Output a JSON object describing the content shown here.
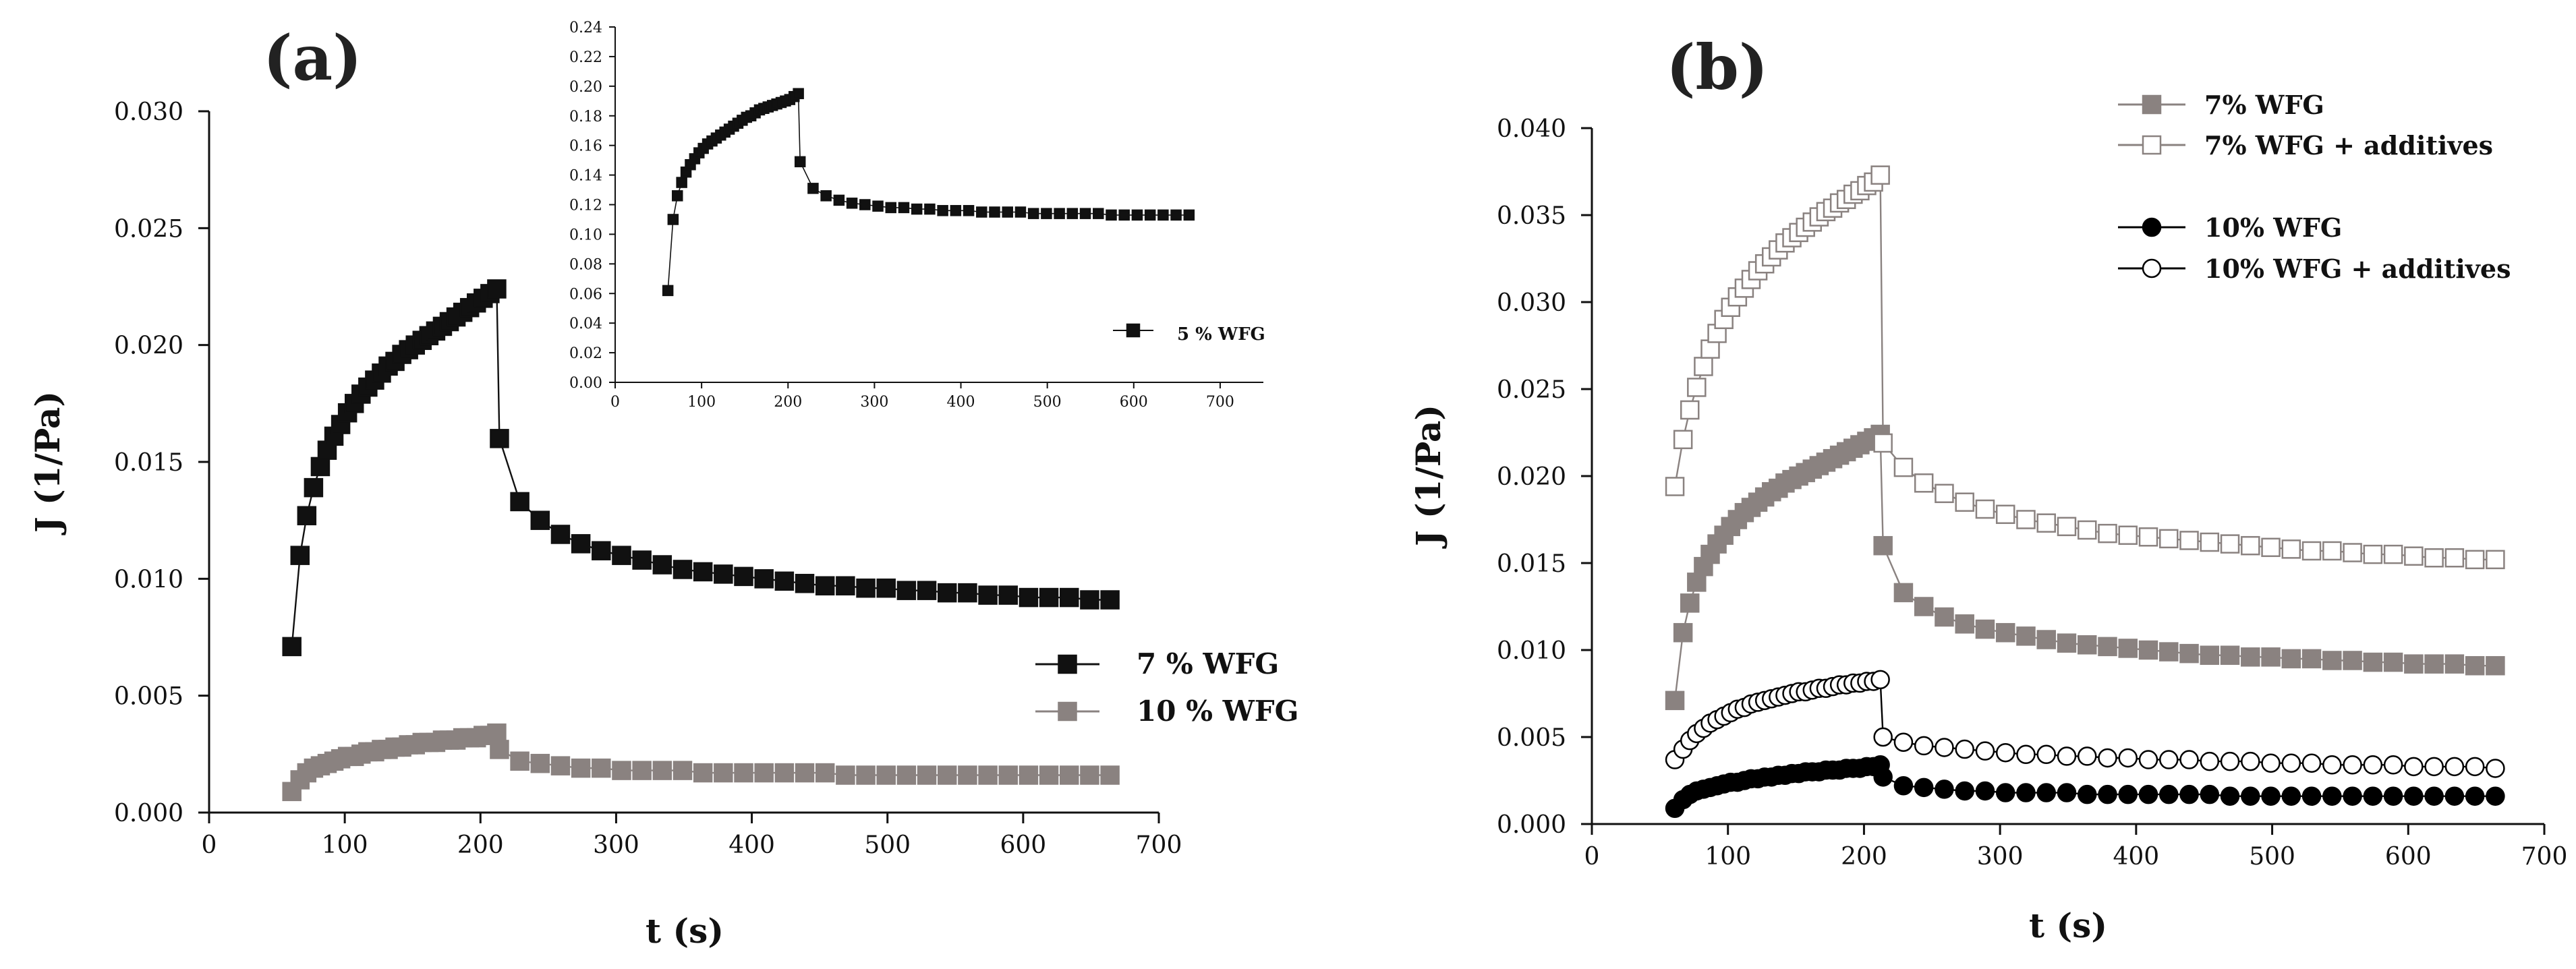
{
  "chart_data": [
    {
      "id": "a",
      "type": "line",
      "panel_label": "(a)",
      "xlabel": "t (s)",
      "ylabel": "J (1/Pa)",
      "xlim": [
        0,
        700
      ],
      "ylim": [
        0,
        0.03
      ],
      "xticks": [
        "0",
        "100",
        "200",
        "300",
        "400",
        "500",
        "600",
        "700"
      ],
      "yticks": [
        "0.000",
        "0.005",
        "0.010",
        "0.015",
        "0.020",
        "0.025",
        "0.030"
      ],
      "legend_position": "right-middle",
      "series": [
        {
          "name": "7 % WFG",
          "marker": "square",
          "fill": "#111111",
          "stroke": "#111111",
          "x": [
            61,
            67,
            72,
            77,
            82,
            87,
            92,
            97,
            102,
            107,
            112,
            117,
            122,
            127,
            132,
            137,
            142,
            147,
            152,
            157,
            162,
            167,
            172,
            177,
            182,
            187,
            192,
            197,
            202,
            207,
            212,
            214,
            229,
            244,
            259,
            274,
            289,
            304,
            319,
            334,
            349,
            364,
            379,
            394,
            409,
            424,
            439,
            454,
            469,
            484,
            499,
            514,
            529,
            544,
            559,
            574,
            589,
            604,
            619,
            634,
            649,
            664
          ],
          "y": [
            0.0071,
            0.011,
            0.0127,
            0.0139,
            0.0148,
            0.0155,
            0.0161,
            0.0166,
            0.0171,
            0.0175,
            0.0179,
            0.0182,
            0.0185,
            0.0188,
            0.0191,
            0.0193,
            0.0196,
            0.0198,
            0.02,
            0.0202,
            0.0204,
            0.0206,
            0.0208,
            0.021,
            0.0212,
            0.0214,
            0.0216,
            0.0218,
            0.022,
            0.0222,
            0.0224,
            0.016,
            0.0133,
            0.0125,
            0.0119,
            0.0115,
            0.0112,
            0.011,
            0.0108,
            0.0106,
            0.0104,
            0.0103,
            0.0102,
            0.0101,
            0.01,
            0.0099,
            0.0098,
            0.0097,
            0.0097,
            0.0096,
            0.0096,
            0.0095,
            0.0095,
            0.0094,
            0.0094,
            0.0093,
            0.0093,
            0.0092,
            0.0092,
            0.0092,
            0.0091,
            0.0091
          ]
        },
        {
          "name": "10 % WFG",
          "marker": "square",
          "fill": "#8a8280",
          "stroke": "#8a8280",
          "x": [
            61,
            67,
            72,
            77,
            82,
            87,
            92,
            97,
            102,
            107,
            112,
            117,
            122,
            127,
            132,
            137,
            142,
            147,
            152,
            157,
            162,
            167,
            172,
            177,
            182,
            187,
            192,
            197,
            202,
            207,
            212,
            214,
            229,
            244,
            259,
            274,
            289,
            304,
            319,
            334,
            349,
            364,
            379,
            394,
            409,
            424,
            439,
            454,
            469,
            484,
            499,
            514,
            529,
            544,
            559,
            574,
            589,
            604,
            619,
            634,
            649,
            664
          ],
          "y": [
            0.0009,
            0.0014,
            0.0017,
            0.0019,
            0.002,
            0.0021,
            0.0022,
            0.0023,
            0.0024,
            0.0024,
            0.0025,
            0.0026,
            0.0026,
            0.0027,
            0.0027,
            0.0028,
            0.0028,
            0.0029,
            0.0029,
            0.003,
            0.003,
            0.003,
            0.0031,
            0.0031,
            0.0031,
            0.0032,
            0.0032,
            0.0032,
            0.0033,
            0.0033,
            0.0034,
            0.0027,
            0.0022,
            0.0021,
            0.002,
            0.0019,
            0.0019,
            0.0018,
            0.0018,
            0.0018,
            0.0018,
            0.0017,
            0.0017,
            0.0017,
            0.0017,
            0.0017,
            0.0017,
            0.0017,
            0.0016,
            0.0016,
            0.0016,
            0.0016,
            0.0016,
            0.0016,
            0.0016,
            0.0016,
            0.0016,
            0.0016,
            0.0016,
            0.0016,
            0.0016,
            0.0016
          ]
        }
      ]
    },
    {
      "id": "a-inset",
      "type": "line",
      "xlim": [
        0,
        750
      ],
      "ylim": [
        0,
        0.24
      ],
      "xticks": [
        "0",
        "100",
        "200",
        "300",
        "400",
        "500",
        "600",
        "700"
      ],
      "yticks": [
        "0.00",
        "0.02",
        "0.04",
        "0.06",
        "0.08",
        "0.10",
        "0.12",
        "0.14",
        "0.16",
        "0.18",
        "0.20",
        "0.22",
        "0.24"
      ],
      "legend_position": "right-middle",
      "series": [
        {
          "name": "5 % WFG",
          "marker": "square",
          "fill": "#111111",
          "stroke": "#111111",
          "x": [
            61,
            67,
            72,
            77,
            82,
            87,
            92,
            97,
            102,
            107,
            112,
            117,
            122,
            127,
            132,
            137,
            142,
            147,
            152,
            157,
            162,
            167,
            172,
            177,
            182,
            187,
            192,
            197,
            202,
            207,
            212,
            214,
            229,
            244,
            259,
            274,
            289,
            304,
            319,
            334,
            349,
            364,
            379,
            394,
            409,
            424,
            439,
            454,
            469,
            484,
            499,
            514,
            529,
            544,
            559,
            574,
            589,
            604,
            619,
            634,
            649,
            664
          ],
          "y": [
            0.062,
            0.11,
            0.126,
            0.135,
            0.142,
            0.147,
            0.151,
            0.155,
            0.158,
            0.161,
            0.163,
            0.165,
            0.167,
            0.169,
            0.171,
            0.173,
            0.175,
            0.177,
            0.179,
            0.18,
            0.182,
            0.184,
            0.185,
            0.186,
            0.187,
            0.188,
            0.189,
            0.19,
            0.191,
            0.193,
            0.195,
            0.149,
            0.131,
            0.126,
            0.123,
            0.121,
            0.12,
            0.119,
            0.118,
            0.118,
            0.117,
            0.117,
            0.116,
            0.116,
            0.116,
            0.115,
            0.115,
            0.115,
            0.115,
            0.114,
            0.114,
            0.114,
            0.114,
            0.114,
            0.114,
            0.113,
            0.113,
            0.113,
            0.113,
            0.113,
            0.113,
            0.113
          ]
        }
      ]
    },
    {
      "id": "b",
      "type": "line",
      "panel_label": "(b)",
      "xlabel": "t (s)",
      "ylabel": "J (1/Pa)",
      "xlim": [
        0,
        700
      ],
      "ylim": [
        0,
        0.04
      ],
      "xticks": [
        "0",
        "100",
        "200",
        "300",
        "400",
        "500",
        "600",
        "700"
      ],
      "yticks": [
        "0.000",
        "0.005",
        "0.010",
        "0.015",
        "0.020",
        "0.025",
        "0.030",
        "0.035",
        "0.040"
      ],
      "legend_position": "top-right",
      "series": [
        {
          "name": "7% WFG",
          "marker": "square",
          "fill": "#8a8280",
          "stroke": "#8a8280",
          "x": [
            61,
            67,
            72,
            77,
            82,
            87,
            92,
            97,
            102,
            107,
            112,
            117,
            122,
            127,
            132,
            137,
            142,
            147,
            152,
            157,
            162,
            167,
            172,
            177,
            182,
            187,
            192,
            197,
            202,
            207,
            212,
            214,
            229,
            244,
            259,
            274,
            289,
            304,
            319,
            334,
            349,
            364,
            379,
            394,
            409,
            424,
            439,
            454,
            469,
            484,
            499,
            514,
            529,
            544,
            559,
            574,
            589,
            604,
            619,
            634,
            649,
            664
          ],
          "y": [
            0.0071,
            0.011,
            0.0127,
            0.0139,
            0.0148,
            0.0155,
            0.0161,
            0.0166,
            0.0171,
            0.0175,
            0.0179,
            0.0182,
            0.0185,
            0.0188,
            0.0191,
            0.0193,
            0.0196,
            0.0198,
            0.02,
            0.0202,
            0.0204,
            0.0206,
            0.0208,
            0.021,
            0.0212,
            0.0214,
            0.0216,
            0.0218,
            0.022,
            0.0222,
            0.0224,
            0.016,
            0.0133,
            0.0125,
            0.0119,
            0.0115,
            0.0112,
            0.011,
            0.0108,
            0.0106,
            0.0104,
            0.0103,
            0.0102,
            0.0101,
            0.01,
            0.0099,
            0.0098,
            0.0097,
            0.0097,
            0.0096,
            0.0096,
            0.0095,
            0.0095,
            0.0094,
            0.0094,
            0.0093,
            0.0093,
            0.0092,
            0.0092,
            0.0092,
            0.0091,
            0.0091
          ]
        },
        {
          "name": "7% WFG + additives",
          "marker": "square",
          "fill": "#ffffff",
          "stroke": "#8a8280",
          "x": [
            61,
            67,
            72,
            77,
            82,
            87,
            92,
            97,
            102,
            107,
            112,
            117,
            122,
            127,
            132,
            137,
            142,
            147,
            152,
            157,
            162,
            167,
            172,
            177,
            182,
            187,
            192,
            197,
            202,
            207,
            212,
            214,
            229,
            244,
            259,
            274,
            289,
            304,
            319,
            334,
            349,
            364,
            379,
            394,
            409,
            424,
            439,
            454,
            469,
            484,
            499,
            514,
            529,
            544,
            559,
            574,
            589,
            604,
            619,
            634,
            649,
            664
          ],
          "y": [
            0.0194,
            0.0221,
            0.0238,
            0.0251,
            0.0263,
            0.0273,
            0.0282,
            0.029,
            0.0297,
            0.0303,
            0.0308,
            0.0313,
            0.0318,
            0.0322,
            0.0326,
            0.033,
            0.0334,
            0.0337,
            0.034,
            0.0343,
            0.0346,
            0.0349,
            0.0352,
            0.0354,
            0.0357,
            0.0359,
            0.0362,
            0.0364,
            0.0367,
            0.0369,
            0.0373,
            0.0219,
            0.0205,
            0.0196,
            0.019,
            0.0185,
            0.0181,
            0.0178,
            0.0175,
            0.0173,
            0.0171,
            0.0169,
            0.0167,
            0.0166,
            0.0165,
            0.0164,
            0.0163,
            0.0162,
            0.0161,
            0.016,
            0.0159,
            0.0158,
            0.0157,
            0.0157,
            0.0156,
            0.0155,
            0.0155,
            0.0154,
            0.0153,
            0.0153,
            0.0152,
            0.0152
          ]
        },
        {
          "name": "10% WFG",
          "marker": "circle",
          "fill": "#000000",
          "stroke": "#000000",
          "x": [
            61,
            67,
            72,
            77,
            82,
            87,
            92,
            97,
            102,
            107,
            112,
            117,
            122,
            127,
            132,
            137,
            142,
            147,
            152,
            157,
            162,
            167,
            172,
            177,
            182,
            187,
            192,
            197,
            202,
            207,
            212,
            214,
            229,
            244,
            259,
            274,
            289,
            304,
            319,
            334,
            349,
            364,
            379,
            394,
            409,
            424,
            439,
            454,
            469,
            484,
            499,
            514,
            529,
            544,
            559,
            574,
            589,
            604,
            619,
            634,
            649,
            664
          ],
          "y": [
            0.0009,
            0.0014,
            0.0017,
            0.0019,
            0.002,
            0.0021,
            0.0022,
            0.0023,
            0.0024,
            0.0024,
            0.0025,
            0.0026,
            0.0026,
            0.0027,
            0.0027,
            0.0028,
            0.0028,
            0.0029,
            0.0029,
            0.003,
            0.003,
            0.003,
            0.0031,
            0.0031,
            0.0031,
            0.0032,
            0.0032,
            0.0032,
            0.0033,
            0.0033,
            0.0034,
            0.0027,
            0.0022,
            0.0021,
            0.002,
            0.0019,
            0.0019,
            0.0018,
            0.0018,
            0.0018,
            0.0018,
            0.0017,
            0.0017,
            0.0017,
            0.0017,
            0.0017,
            0.0017,
            0.0017,
            0.0016,
            0.0016,
            0.0016,
            0.0016,
            0.0016,
            0.0016,
            0.0016,
            0.0016,
            0.0016,
            0.0016,
            0.0016,
            0.0016,
            0.0016,
            0.0016
          ]
        },
        {
          "name": "10% WFG + additives",
          "marker": "circle",
          "fill": "#ffffff",
          "stroke": "#000000",
          "x": [
            61,
            67,
            72,
            77,
            82,
            87,
            92,
            97,
            102,
            107,
            112,
            117,
            122,
            127,
            132,
            137,
            142,
            147,
            152,
            157,
            162,
            167,
            172,
            177,
            182,
            187,
            192,
            197,
            202,
            207,
            212,
            214,
            229,
            244,
            259,
            274,
            289,
            304,
            319,
            334,
            349,
            364,
            379,
            394,
            409,
            424,
            439,
            454,
            469,
            484,
            499,
            514,
            529,
            544,
            559,
            574,
            589,
            604,
            619,
            634,
            649,
            664
          ],
          "y": [
            0.0037,
            0.0043,
            0.0048,
            0.0052,
            0.0055,
            0.0058,
            0.006,
            0.0062,
            0.0064,
            0.0066,
            0.0067,
            0.0069,
            0.007,
            0.0071,
            0.0072,
            0.0073,
            0.0074,
            0.0075,
            0.0076,
            0.0076,
            0.0077,
            0.0078,
            0.0078,
            0.0079,
            0.008,
            0.008,
            0.0081,
            0.0081,
            0.0082,
            0.0082,
            0.0083,
            0.005,
            0.0047,
            0.0045,
            0.0044,
            0.0043,
            0.0042,
            0.0041,
            0.004,
            0.004,
            0.0039,
            0.0039,
            0.0038,
            0.0038,
            0.0037,
            0.0037,
            0.0037,
            0.0036,
            0.0036,
            0.0036,
            0.0035,
            0.0035,
            0.0035,
            0.0034,
            0.0034,
            0.0034,
            0.0034,
            0.0033,
            0.0033,
            0.0033,
            0.0033,
            0.0032
          ]
        }
      ]
    }
  ]
}
